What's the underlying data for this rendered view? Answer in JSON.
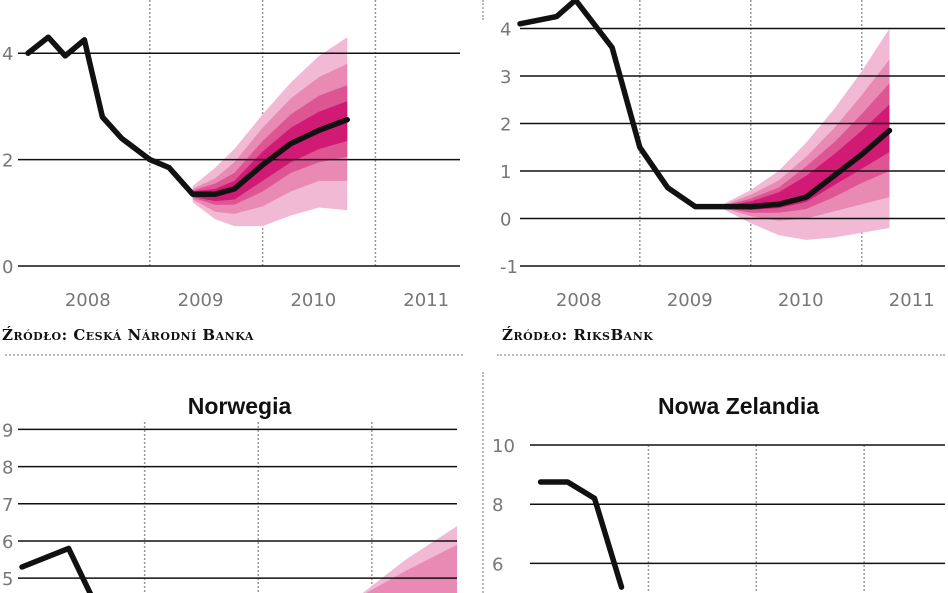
{
  "colors": {
    "band_outer": "#f2b9d4",
    "band_mid_outer": "#e98ab5",
    "band_mid_inner": "#de5593",
    "band_inner": "#d01a73",
    "line": "#111111",
    "grid": "#111111",
    "vgrid": "#999999",
    "tick": "#777777"
  },
  "charts": [
    {
      "id": "czechy",
      "title": "",
      "source": "Źródło: Ceská Národní Banka",
      "chart_data": {
        "type": "line",
        "title": "",
        "xlabel": "",
        "ylabel": "",
        "x_tick_labels": [
          "2008",
          "2009",
          "2010",
          "2011"
        ],
        "ylim": [
          0,
          5.0
        ],
        "xlim": [
          2007.92,
          2011.75
        ],
        "y_ticks": [
          0,
          2,
          4
        ],
        "y_tick_labels": [
          "0",
          "2",
          "4"
        ],
        "x_gridlines": [
          2009,
          2010,
          2011
        ],
        "series": [
          {
            "values": [
              [
                2007.92,
                4.0
              ],
              [
                2008.1,
                4.3
              ],
              [
                2008.25,
                3.95
              ],
              [
                2008.42,
                4.25
              ],
              [
                2008.58,
                2.8
              ],
              [
                2008.75,
                2.4
              ],
              [
                2009.0,
                2.0
              ],
              [
                2009.17,
                1.85
              ],
              [
                2009.38,
                1.35
              ],
              [
                2009.58,
                1.35
              ],
              [
                2009.75,
                1.45
              ],
              [
                2010.0,
                1.9
              ],
              [
                2010.25,
                2.3
              ],
              [
                2010.5,
                2.55
              ],
              [
                2010.75,
                2.75
              ]
            ]
          }
        ],
        "fan": {
          "x": [
            2009.38,
            2009.58,
            2009.75,
            2010.0,
            2010.25,
            2010.5,
            2010.75
          ],
          "bands": [
            {
              "level": "outer",
              "low": [
                1.2,
                0.88,
                0.75,
                0.75,
                0.95,
                1.1,
                1.05
              ],
              "high": [
                1.5,
                1.85,
                2.2,
                2.85,
                3.45,
                3.95,
                4.3
              ]
            },
            {
              "level": "mid-outer",
              "low": [
                1.25,
                1.02,
                0.98,
                1.12,
                1.4,
                1.6,
                1.6
              ],
              "high": [
                1.45,
                1.65,
                1.95,
                2.6,
                3.15,
                3.55,
                3.8
              ]
            },
            {
              "level": "mid-inner",
              "low": [
                1.28,
                1.15,
                1.15,
                1.4,
                1.75,
                1.95,
                2.05
              ],
              "high": [
                1.42,
                1.55,
                1.75,
                2.35,
                2.85,
                3.2,
                3.4
              ]
            },
            {
              "level": "inner",
              "low": [
                1.3,
                1.22,
                1.25,
                1.6,
                1.95,
                2.2,
                2.35
              ],
              "high": [
                1.4,
                1.45,
                1.6,
                2.15,
                2.6,
                2.9,
                3.1
              ]
            }
          ]
        }
      }
    },
    {
      "id": "szwecja",
      "title": "",
      "source": "Źródło: RiksBank",
      "chart_data": {
        "type": "line",
        "title": "",
        "xlabel": "",
        "ylabel": "",
        "x_tick_labels": [
          "2008",
          "2009",
          "2010",
          "2011"
        ],
        "ylim": [
          -1.0,
          4.6
        ],
        "xlim": [
          2007.92,
          2011.75
        ],
        "y_ticks": [
          -1,
          0,
          1,
          2,
          3,
          4
        ],
        "y_tick_labels": [
          "-1",
          "0",
          "1",
          "2",
          "3",
          "4"
        ],
        "x_gridlines": [
          2009,
          2010,
          2011
        ],
        "series": [
          {
            "values": [
              [
                2007.92,
                4.1
              ],
              [
                2008.25,
                4.25
              ],
              [
                2008.42,
                4.6
              ],
              [
                2008.75,
                3.6
              ],
              [
                2009.0,
                1.5
              ],
              [
                2009.25,
                0.65
              ],
              [
                2009.5,
                0.25
              ],
              [
                2009.75,
                0.25
              ],
              [
                2010.0,
                0.25
              ],
              [
                2010.25,
                0.3
              ],
              [
                2010.5,
                0.45
              ],
              [
                2010.75,
                0.9
              ],
              [
                2011.0,
                1.35
              ],
              [
                2011.25,
                1.85
              ]
            ]
          }
        ],
        "fan": {
          "x": [
            2009.75,
            2010.0,
            2010.25,
            2010.5,
            2010.75,
            2011.0,
            2011.25
          ],
          "bands": [
            {
              "level": "outer",
              "low": [
                0.2,
                -0.1,
                -0.35,
                -0.45,
                -0.4,
                -0.3,
                -0.2
              ],
              "high": [
                0.3,
                0.6,
                1.0,
                1.6,
                2.3,
                3.1,
                4.0
              ]
            },
            {
              "level": "mid-outer",
              "low": [
                0.22,
                0.05,
                -0.05,
                0.0,
                0.15,
                0.3,
                0.45
              ],
              "high": [
                0.28,
                0.5,
                0.8,
                1.3,
                1.9,
                2.6,
                3.35
              ]
            },
            {
              "level": "mid-inner",
              "low": [
                0.23,
                0.12,
                0.12,
                0.2,
                0.45,
                0.75,
                1.0
              ],
              "high": [
                0.27,
                0.42,
                0.65,
                1.1,
                1.6,
                2.2,
                2.85
              ]
            },
            {
              "level": "inner",
              "low": [
                0.24,
                0.18,
                0.22,
                0.35,
                0.7,
                1.05,
                1.4
              ],
              "high": [
                0.26,
                0.36,
                0.55,
                0.9,
                1.35,
                1.85,
                2.4
              ]
            }
          ]
        }
      }
    },
    {
      "id": "norwegia",
      "title": "Norwegia",
      "source": "",
      "chart_data": {
        "type": "line",
        "title": "Norwegia",
        "xlabel": "",
        "ylabel": "",
        "ylim": [
          4.6,
          9.2
        ],
        "xlim": [
          2007.92,
          2011.75
        ],
        "y_ticks": [
          5,
          6,
          7,
          8,
          9
        ],
        "y_tick_labels": [
          "5",
          "6",
          "7",
          "8",
          "9"
        ],
        "x_gridlines": [
          2009,
          2010,
          2011
        ],
        "series": [
          {
            "values": [
              [
                2007.92,
                5.3
              ],
              [
                2008.33,
                5.8
              ],
              [
                2008.55,
                4.4
              ]
            ]
          }
        ],
        "fan": {
          "x": [
            2010.92,
            2011.3,
            2011.75
          ],
          "bands": [
            {
              "level": "outer",
              "low": [
                4.5,
                4.6,
                4.7
              ],
              "high": [
                4.6,
                5.5,
                6.4
              ]
            },
            {
              "level": "mid-outer",
              "low": [
                4.5,
                4.55,
                4.6
              ],
              "high": [
                4.55,
                5.2,
                5.9
              ]
            }
          ]
        }
      }
    },
    {
      "id": "nowa-zelandia",
      "title": "Nowa Zelandia",
      "source": "",
      "chart_data": {
        "type": "line",
        "title": "Nowa Zelandia",
        "xlabel": "",
        "ylabel": "",
        "ylim": [
          5.0,
          10.0
        ],
        "xlim": [
          2007.92,
          2011.75
        ],
        "y_ticks": [
          6,
          8,
          10
        ],
        "y_tick_labels": [
          "6",
          "8",
          "10"
        ],
        "x_gridlines": [
          2009,
          2010,
          2011
        ],
        "series": [
          {
            "values": [
              [
                2008.0,
                8.75
              ],
              [
                2008.25,
                8.75
              ],
              [
                2008.5,
                8.2
              ],
              [
                2008.75,
                5.2
              ]
            ]
          }
        ]
      }
    }
  ]
}
